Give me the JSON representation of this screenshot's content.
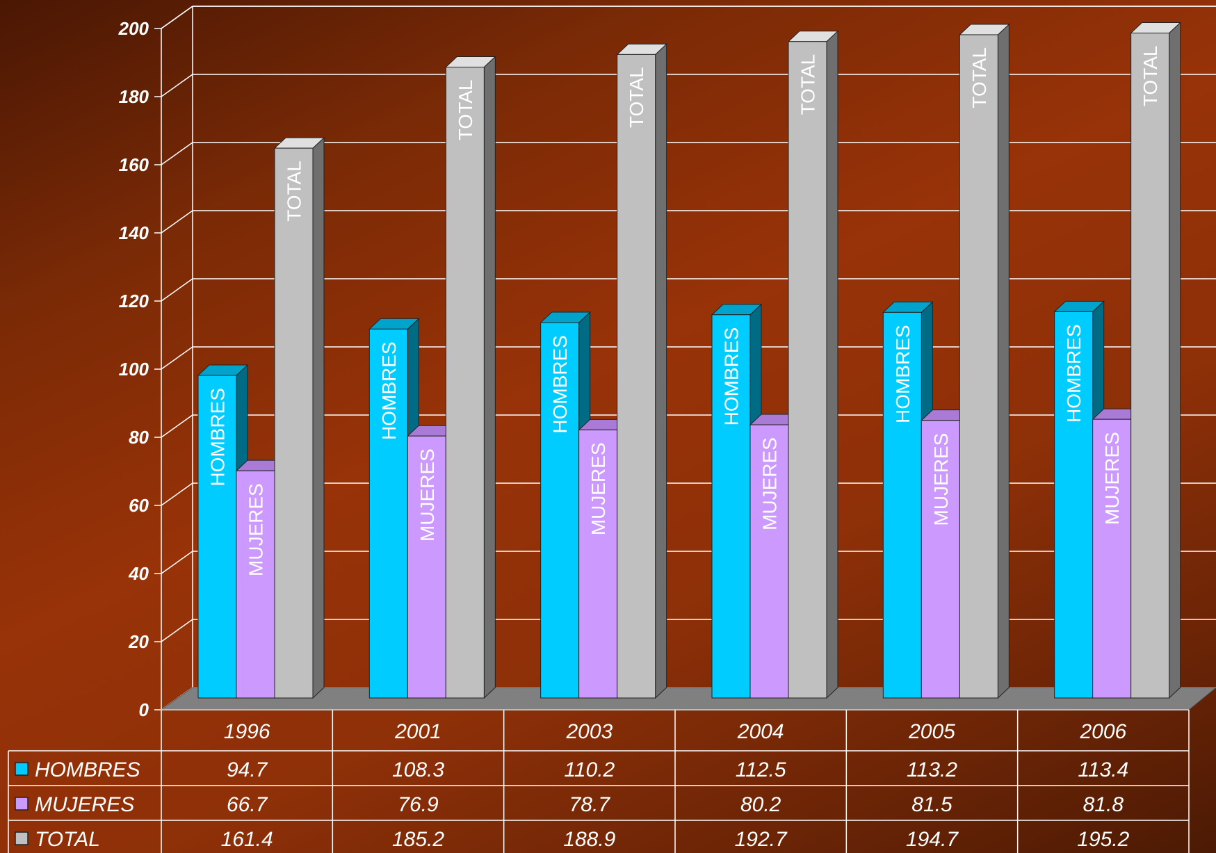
{
  "chart_data": {
    "type": "bar",
    "categories": [
      "1996",
      "2001",
      "2003",
      "2004",
      "2005",
      "2006"
    ],
    "series": [
      {
        "name": "HOMBRES",
        "values": [
          94.7,
          108.3,
          110.2,
          112.5,
          113.2,
          113.4
        ],
        "color": "#00ccff",
        "side": "#006b85",
        "top": "#00a3cc",
        "bar_label": "HOMBRES"
      },
      {
        "name": "MUJERES",
        "values": [
          66.7,
          76.9,
          78.7,
          80.2,
          81.5,
          81.8
        ],
        "color": "#cc99ff",
        "side": "#8a5cb8",
        "top": "#a97ad6",
        "bar_label": "MUJERES"
      },
      {
        "name": "TOTAL",
        "values": [
          161.4,
          185.2,
          188.9,
          192.7,
          194.7,
          195.2
        ],
        "color": "#c0c0c0",
        "side": "#6f6f6f",
        "top": "#e0e0e0",
        "bar_label": "TOTAL"
      }
    ],
    "ylim": [
      0,
      200
    ],
    "yticks": [
      "0",
      "20",
      "40",
      "60",
      "80",
      "100",
      "120",
      "140",
      "160",
      "180",
      "200"
    ],
    "grid": true,
    "legend": "data-table-below",
    "data_table": true,
    "text_color": "#ffffff",
    "grid_color": "#ffffff",
    "floor_color": "#808080"
  }
}
